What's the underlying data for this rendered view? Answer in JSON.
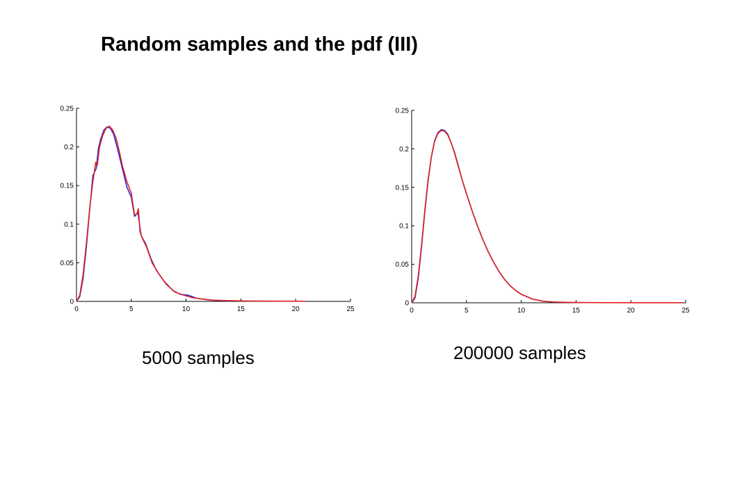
{
  "slide": {
    "title": "Random samples and the pdf (III)"
  },
  "chart_data": [
    {
      "type": "line",
      "caption": "5000 samples",
      "xlim": [
        0,
        25
      ],
      "ylim": [
        0,
        0.25
      ],
      "xticks": [
        "0",
        "5",
        "10",
        "15",
        "20",
        "25"
      ],
      "yticks": [
        "0",
        "0.05",
        "0.1",
        "0.15",
        "0.2",
        "0.25"
      ],
      "grid": false,
      "series": [
        {
          "color": "#2b2bd6",
          "x": [
            0,
            0.3,
            0.6,
            0.9,
            1.2,
            1.5,
            1.8,
            2.0,
            2.2,
            2.5,
            2.8,
            3.1,
            3.4,
            3.7,
            4.0,
            4.3,
            4.6,
            5.0,
            5.3,
            5.6,
            5.9,
            6.3,
            6.8,
            7.3,
            8.0,
            8.8,
            9.5,
            10.2,
            11.0,
            12.0,
            13.0,
            14.0
          ],
          "y": [
            0,
            0.006,
            0.03,
            0.07,
            0.118,
            0.163,
            0.172,
            0.198,
            0.21,
            0.222,
            0.226,
            0.224,
            0.216,
            0.2,
            0.183,
            0.165,
            0.148,
            0.135,
            0.11,
            0.115,
            0.085,
            0.075,
            0.055,
            0.04,
            0.026,
            0.014,
            0.009,
            0.008,
            0.004,
            0.002,
            0.001,
            0.0005
          ]
        },
        {
          "color": "#e02020",
          "x": [
            0,
            0.3,
            0.6,
            0.9,
            1.2,
            1.5,
            1.75,
            1.9,
            2.1,
            2.4,
            2.7,
            3.0,
            3.3,
            3.6,
            3.9,
            4.2,
            4.6,
            5.0,
            5.3,
            5.5,
            5.65,
            5.8,
            6.0,
            6.4,
            6.9,
            7.5,
            8.2,
            9.0,
            9.8,
            10.5,
            11.5,
            12.5,
            14.0,
            15.5,
            17.0,
            19.0,
            20.9
          ],
          "y": [
            0,
            0.008,
            0.035,
            0.075,
            0.12,
            0.155,
            0.18,
            0.176,
            0.2,
            0.215,
            0.224,
            0.227,
            0.222,
            0.212,
            0.195,
            0.175,
            0.155,
            0.14,
            0.112,
            0.113,
            0.12,
            0.09,
            0.082,
            0.07,
            0.05,
            0.036,
            0.022,
            0.012,
            0.008,
            0.005,
            0.003,
            0.0015,
            0.001,
            0.0005,
            0.0004,
            0.0003,
            0.0002
          ]
        }
      ]
    },
    {
      "type": "line",
      "caption": "200000 samples",
      "xlim": [
        0,
        25
      ],
      "ylim": [
        0,
        0.25
      ],
      "xticks": [
        "0",
        "5",
        "10",
        "15",
        "20",
        "25"
      ],
      "yticks": [
        "0",
        "0.05",
        "0.1",
        "0.15",
        "0.2",
        "0.25"
      ],
      "grid": false,
      "series": [
        {
          "color": "#2b2bd6",
          "x": [
            0,
            0.3,
            0.6,
            0.9,
            1.2,
            1.5,
            1.8,
            2.1,
            2.4,
            2.7,
            3.0,
            3.3,
            3.6,
            3.9,
            4.2,
            4.6,
            5.0,
            5.5,
            6.0,
            6.5,
            7.0,
            7.5,
            8.0,
            8.5,
            9.0,
            9.5,
            10.0,
            10.5,
            11.0,
            12.0,
            13.0,
            14.0
          ],
          "y": [
            0,
            0.006,
            0.032,
            0.072,
            0.118,
            0.158,
            0.19,
            0.211,
            0.221,
            0.225,
            0.224,
            0.219,
            0.208,
            0.196,
            0.181,
            0.16,
            0.142,
            0.12,
            0.1,
            0.082,
            0.066,
            0.052,
            0.04,
            0.03,
            0.022,
            0.016,
            0.011,
            0.008,
            0.005,
            0.002,
            0.001,
            0.0005
          ]
        },
        {
          "color": "#e02020",
          "x": [
            0,
            0.3,
            0.6,
            0.9,
            1.2,
            1.5,
            1.8,
            2.1,
            2.4,
            2.7,
            3.0,
            3.3,
            3.6,
            3.9,
            4.2,
            4.6,
            5.0,
            5.5,
            6.0,
            6.5,
            7.0,
            7.5,
            8.0,
            8.5,
            9.0,
            9.5,
            10.0,
            10.5,
            11.0,
            12.0,
            13.0,
            14.5,
            16.0,
            18.0,
            20.0,
            22.5,
            24.7
          ],
          "y": [
            0,
            0.008,
            0.035,
            0.075,
            0.12,
            0.16,
            0.19,
            0.21,
            0.22,
            0.224,
            0.223,
            0.218,
            0.208,
            0.195,
            0.18,
            0.16,
            0.142,
            0.12,
            0.1,
            0.082,
            0.066,
            0.052,
            0.04,
            0.03,
            0.022,
            0.016,
            0.011,
            0.008,
            0.005,
            0.002,
            0.001,
            0.0005,
            0.0003,
            0.0002,
            0.0001,
            0.0001,
            0.0001
          ]
        }
      ]
    }
  ]
}
